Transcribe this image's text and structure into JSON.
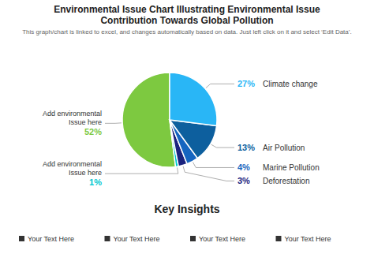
{
  "chart_data": {
    "type": "pie",
    "title": "Environmental Issue Chart Illustrating Environmental Issue\nContribution Towards Global Pollution",
    "subtitle": "This graph/chart is linked to excel, and changes automatically based on data. Just left click on it and select ‘Edit Data’.",
    "categories": [
      "Add environmental\nIssue here",
      "Add environmental\nIssue here",
      "Deforestation",
      "Marine Pollution",
      "Air Pollution",
      "Climate change"
    ],
    "values": [
      52,
      1,
      3,
      4,
      13,
      27
    ],
    "value_labels": [
      "52%",
      "1%",
      "3%",
      "4%",
      "13%",
      "27%"
    ],
    "colors": [
      "#7DC940",
      "#00C8D0",
      "#1A237E",
      "#1565C0",
      "#0D5F9E",
      "#29B6F6"
    ],
    "data_labels": true,
    "annotations": [
      "Key Insights",
      "Your Text Here",
      "Your Text Here",
      "Your Text Here",
      "Your Text Here"
    ]
  }
}
